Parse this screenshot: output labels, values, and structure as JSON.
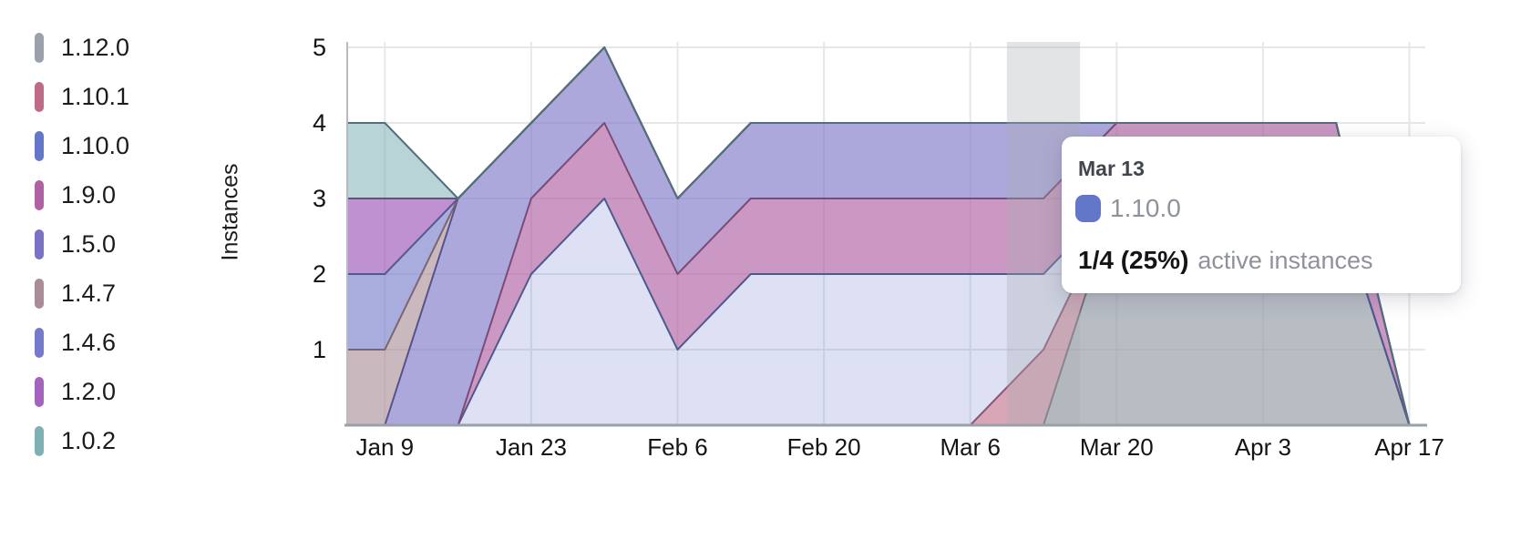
{
  "chart_data": {
    "type": "area",
    "stacked": true,
    "title": "",
    "xlabel": "",
    "ylabel": "Instances",
    "ylim": [
      0,
      5
    ],
    "grid": true,
    "legend_position": "left",
    "y_tick_labels": [
      "1",
      "2",
      "3",
      "4",
      "5"
    ],
    "x_tick_labels": [
      "Jan 9",
      "Jan 23",
      "Feb 6",
      "Feb 20",
      "Mar 6",
      "Mar 20",
      "Apr 3",
      "Apr 17"
    ],
    "x": [
      "Jan 2",
      "Jan 9",
      "Jan 16",
      "Jan 23",
      "Jan 30",
      "Feb 6",
      "Feb 13",
      "Feb 20",
      "Feb 27",
      "Mar 6",
      "Mar 13",
      "Mar 20",
      "Mar 27",
      "Apr 3",
      "Apr 10",
      "Apr 17"
    ],
    "series": [
      {
        "name": "1.12.0",
        "color": "#9aa1ab",
        "stroke": "#6e7480",
        "fill": "rgba(154,161,171,0.70)",
        "values": [
          0,
          0,
          0,
          0,
          0,
          0,
          0,
          0,
          0,
          0,
          0,
          3,
          3,
          3,
          3,
          0
        ]
      },
      {
        "name": "1.10.1",
        "color": "#bf6a87",
        "stroke": "#8f5673",
        "fill": "rgba(191,106,135,0.60)",
        "values": [
          0,
          0,
          0,
          0,
          0,
          0,
          0,
          0,
          0,
          0,
          1,
          0,
          0,
          0,
          0,
          0
        ]
      },
      {
        "name": "1.10.0",
        "color": "#6377c8",
        "stroke": "#4c5a8f",
        "fill": "rgba(99,119,200,0.22)",
        "values": [
          0,
          0,
          0,
          2,
          3,
          1,
          2,
          2,
          2,
          2,
          1,
          0,
          0,
          0,
          0,
          0
        ]
      },
      {
        "name": "1.9.0",
        "color": "#af62a3",
        "stroke": "#7d4a77",
        "fill": "rgba(175,98,163,0.66)",
        "values": [
          0,
          0,
          0,
          1,
          1,
          1,
          1,
          1,
          1,
          1,
          1,
          1,
          1,
          1,
          1,
          0
        ]
      },
      {
        "name": "1.5.0",
        "color": "#7b72c6",
        "stroke": "#55538b",
        "fill": "rgba(123,114,198,0.62)",
        "values": [
          0,
          0,
          3,
          1,
          1,
          1,
          1,
          1,
          1,
          1,
          1,
          0,
          0,
          0,
          0,
          0
        ]
      },
      {
        "name": "1.4.7",
        "color": "#a98c98",
        "stroke": "#7c656f",
        "fill": "rgba(169,140,152,0.62)",
        "values": [
          1,
          1,
          0,
          0,
          0,
          0,
          0,
          0,
          0,
          0,
          0,
          0,
          0,
          0,
          0,
          0
        ]
      },
      {
        "name": "1.4.6",
        "color": "#757bca",
        "stroke": "#535a92",
        "fill": "rgba(117,123,202,0.62)",
        "values": [
          1,
          1,
          0,
          0,
          0,
          0,
          0,
          0,
          0,
          0,
          0,
          0,
          0,
          0,
          0,
          0
        ]
      },
      {
        "name": "1.2.0",
        "color": "#a463bd",
        "stroke": "#6d4c85",
        "fill": "rgba(164,99,189,0.70)",
        "values": [
          1,
          1,
          0,
          0,
          0,
          0,
          0,
          0,
          0,
          0,
          0,
          0,
          0,
          0,
          0,
          0
        ]
      },
      {
        "name": "1.0.2",
        "color": "#7fb1b4",
        "stroke": "#52707a",
        "fill": "rgba(127,177,180,0.55)",
        "values": [
          1,
          1,
          0,
          0,
          0,
          0,
          0,
          0,
          0,
          0,
          0,
          0,
          0,
          0,
          0,
          0
        ]
      }
    ]
  },
  "hover": {
    "x_label": "Mar 13"
  },
  "tooltip": {
    "date": "Mar 13",
    "series_name": "1.10.0",
    "series_color": "#6377c8",
    "value": "1/4 (25%)",
    "value_label": "active instances"
  }
}
